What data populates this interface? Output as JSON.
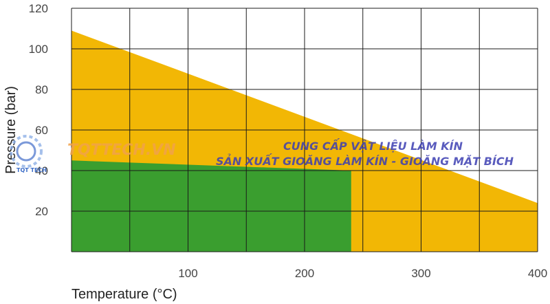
{
  "chart_data": {
    "type": "area",
    "xlabel": "Temperature (°C)",
    "ylabel": "Pressure (bar)",
    "xlim": [
      0,
      400
    ],
    "ylim": [
      0,
      120
    ],
    "x_ticks": [
      100,
      200,
      300,
      400
    ],
    "y_ticks": [
      20,
      40,
      60,
      80,
      100,
      120
    ],
    "grid": true,
    "series": [
      {
        "color": "#f2b705",
        "x": [
          0,
          400
        ],
        "y": [
          109,
          24
        ]
      },
      {
        "color": "#3a9e2f",
        "x": [
          0,
          240
        ],
        "y": [
          45,
          40
        ]
      }
    ]
  },
  "watermark": {
    "brand": "TQTTECH.VN",
    "logo_text": "TQT TECH",
    "line1": "CUNG CẤP VẬT LIỆU LÀM KÍN",
    "line2": "SẢN XUẤT GIOĂNG LÀM KÍN - GIOĂNG MẶT BÍCH"
  }
}
